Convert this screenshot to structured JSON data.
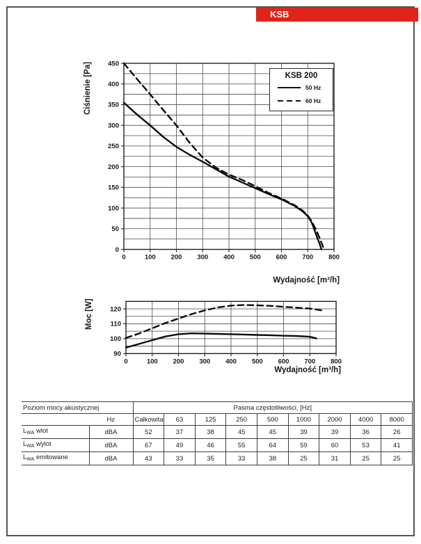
{
  "page": {
    "brand_label": "KSB"
  },
  "chart_data": [
    {
      "type": "line",
      "title": "KSB 200",
      "xlabel": "Wydajność [m³/h]",
      "ylabel": "Ciśnienie [Pa]",
      "xlim": [
        0,
        800
      ],
      "ylim": [
        0,
        450
      ],
      "x_grid_step": 100,
      "y_grid_step": 25,
      "x_ticks": [
        0,
        100,
        200,
        300,
        400,
        500,
        600,
        700,
        800
      ],
      "y_ticks": [
        0,
        50,
        100,
        150,
        200,
        250,
        300,
        350,
        400,
        450
      ],
      "grid": true,
      "legend": {
        "position": "top-right",
        "title": "KSB 200",
        "entries": [
          {
            "label": "50 Hz",
            "line": "solid"
          },
          {
            "label": "60 Hz",
            "line": "dashed"
          }
        ]
      },
      "series": [
        {
          "name": "50 Hz",
          "line": "solid",
          "points": [
            [
              0,
              355
            ],
            [
              50,
              326
            ],
            [
              100,
              300
            ],
            [
              150,
              272
            ],
            [
              200,
              248
            ],
            [
              250,
              229
            ],
            [
              300,
              212
            ],
            [
              350,
              194
            ],
            [
              400,
              176
            ],
            [
              450,
              162
            ],
            [
              500,
              148
            ],
            [
              550,
              134
            ],
            [
              600,
              121
            ],
            [
              650,
              105
            ],
            [
              680,
              92
            ],
            [
              700,
              80
            ],
            [
              715,
              65
            ],
            [
              725,
              48
            ],
            [
              735,
              30
            ],
            [
              745,
              14
            ],
            [
              752,
              0
            ]
          ]
        },
        {
          "name": "60 Hz",
          "line": "dashed",
          "points": [
            [
              0,
              450
            ],
            [
              50,
              412
            ],
            [
              100,
              375
            ],
            [
              150,
              337
            ],
            [
              200,
              300
            ],
            [
              250,
              258
            ],
            [
              300,
              222
            ],
            [
              350,
              198
            ],
            [
              400,
              181
            ],
            [
              450,
              168
            ],
            [
              500,
              153
            ],
            [
              550,
              137
            ],
            [
              600,
              123
            ],
            [
              650,
              107
            ],
            [
              680,
              94
            ],
            [
              700,
              82
            ],
            [
              715,
              68
            ],
            [
              730,
              50
            ],
            [
              745,
              28
            ],
            [
              762,
              0
            ]
          ]
        }
      ]
    },
    {
      "type": "line",
      "title": "",
      "xlabel": "Wydajność [m³/h]",
      "ylabel": "Moc [W]",
      "xlim": [
        0,
        800
      ],
      "ylim": [
        90,
        125
      ],
      "x_grid_step": 100,
      "y_grid_step": 5,
      "x_ticks": [
        0,
        100,
        200,
        300,
        400,
        500,
        600,
        700,
        800
      ],
      "y_ticks": [
        90,
        100,
        110,
        120
      ],
      "grid": true,
      "series": [
        {
          "name": "50 Hz",
          "line": "solid",
          "points": [
            [
              0,
              94
            ],
            [
              50,
              96.5
            ],
            [
              100,
              99
            ],
            [
              150,
              101.5
            ],
            [
              200,
              103
            ],
            [
              250,
              103.6
            ],
            [
              300,
              103.4
            ],
            [
              350,
              103.2
            ],
            [
              400,
              103
            ],
            [
              450,
              102.8
            ],
            [
              500,
              102.5
            ],
            [
              550,
              102.3
            ],
            [
              600,
              102
            ],
            [
              650,
              101.8
            ],
            [
              700,
              101.3
            ],
            [
              725,
              100.2
            ]
          ]
        },
        {
          "name": "60 Hz",
          "line": "dashed",
          "points": [
            [
              0,
              100.5
            ],
            [
              50,
              103.5
            ],
            [
              100,
              107
            ],
            [
              150,
              110.5
            ],
            [
              200,
              113.5
            ],
            [
              250,
              116.5
            ],
            [
              300,
              119
            ],
            [
              350,
              121
            ],
            [
              400,
              122.2
            ],
            [
              450,
              122.6
            ],
            [
              500,
              122.4
            ],
            [
              550,
              122
            ],
            [
              600,
              121.4
            ],
            [
              650,
              120.8
            ],
            [
              700,
              120.2
            ],
            [
              745,
              119
            ]
          ]
        }
      ]
    }
  ],
  "table": {
    "header_left": "Poziom mocy akustycznej",
    "header_right": "Pasma częstotliwości, [Hz]",
    "unit_header": "Hz",
    "band_headers": [
      "Całkowita",
      "63",
      "125",
      "250",
      "500",
      "1000",
      "2000",
      "4000",
      "8000"
    ],
    "rows": [
      {
        "label_prefix": "L",
        "label_sub": "WA",
        "label_rest": " wlot",
        "unit": "dBA",
        "values": [
          "52",
          "37",
          "38",
          "45",
          "45",
          "39",
          "39",
          "36",
          "26"
        ]
      },
      {
        "label_prefix": "L",
        "label_sub": "WA",
        "label_rest": " wylot",
        "unit": "dBA",
        "values": [
          "67",
          "49",
          "46",
          "55",
          "64",
          "59",
          "60",
          "53",
          "41"
        ]
      },
      {
        "label_prefix": "L",
        "label_sub": "WA",
        "label_rest": " emitowane",
        "unit": "dBA",
        "values": [
          "43",
          "33",
          "35",
          "33",
          "38",
          "25",
          "31",
          "25",
          "25"
        ]
      }
    ]
  }
}
